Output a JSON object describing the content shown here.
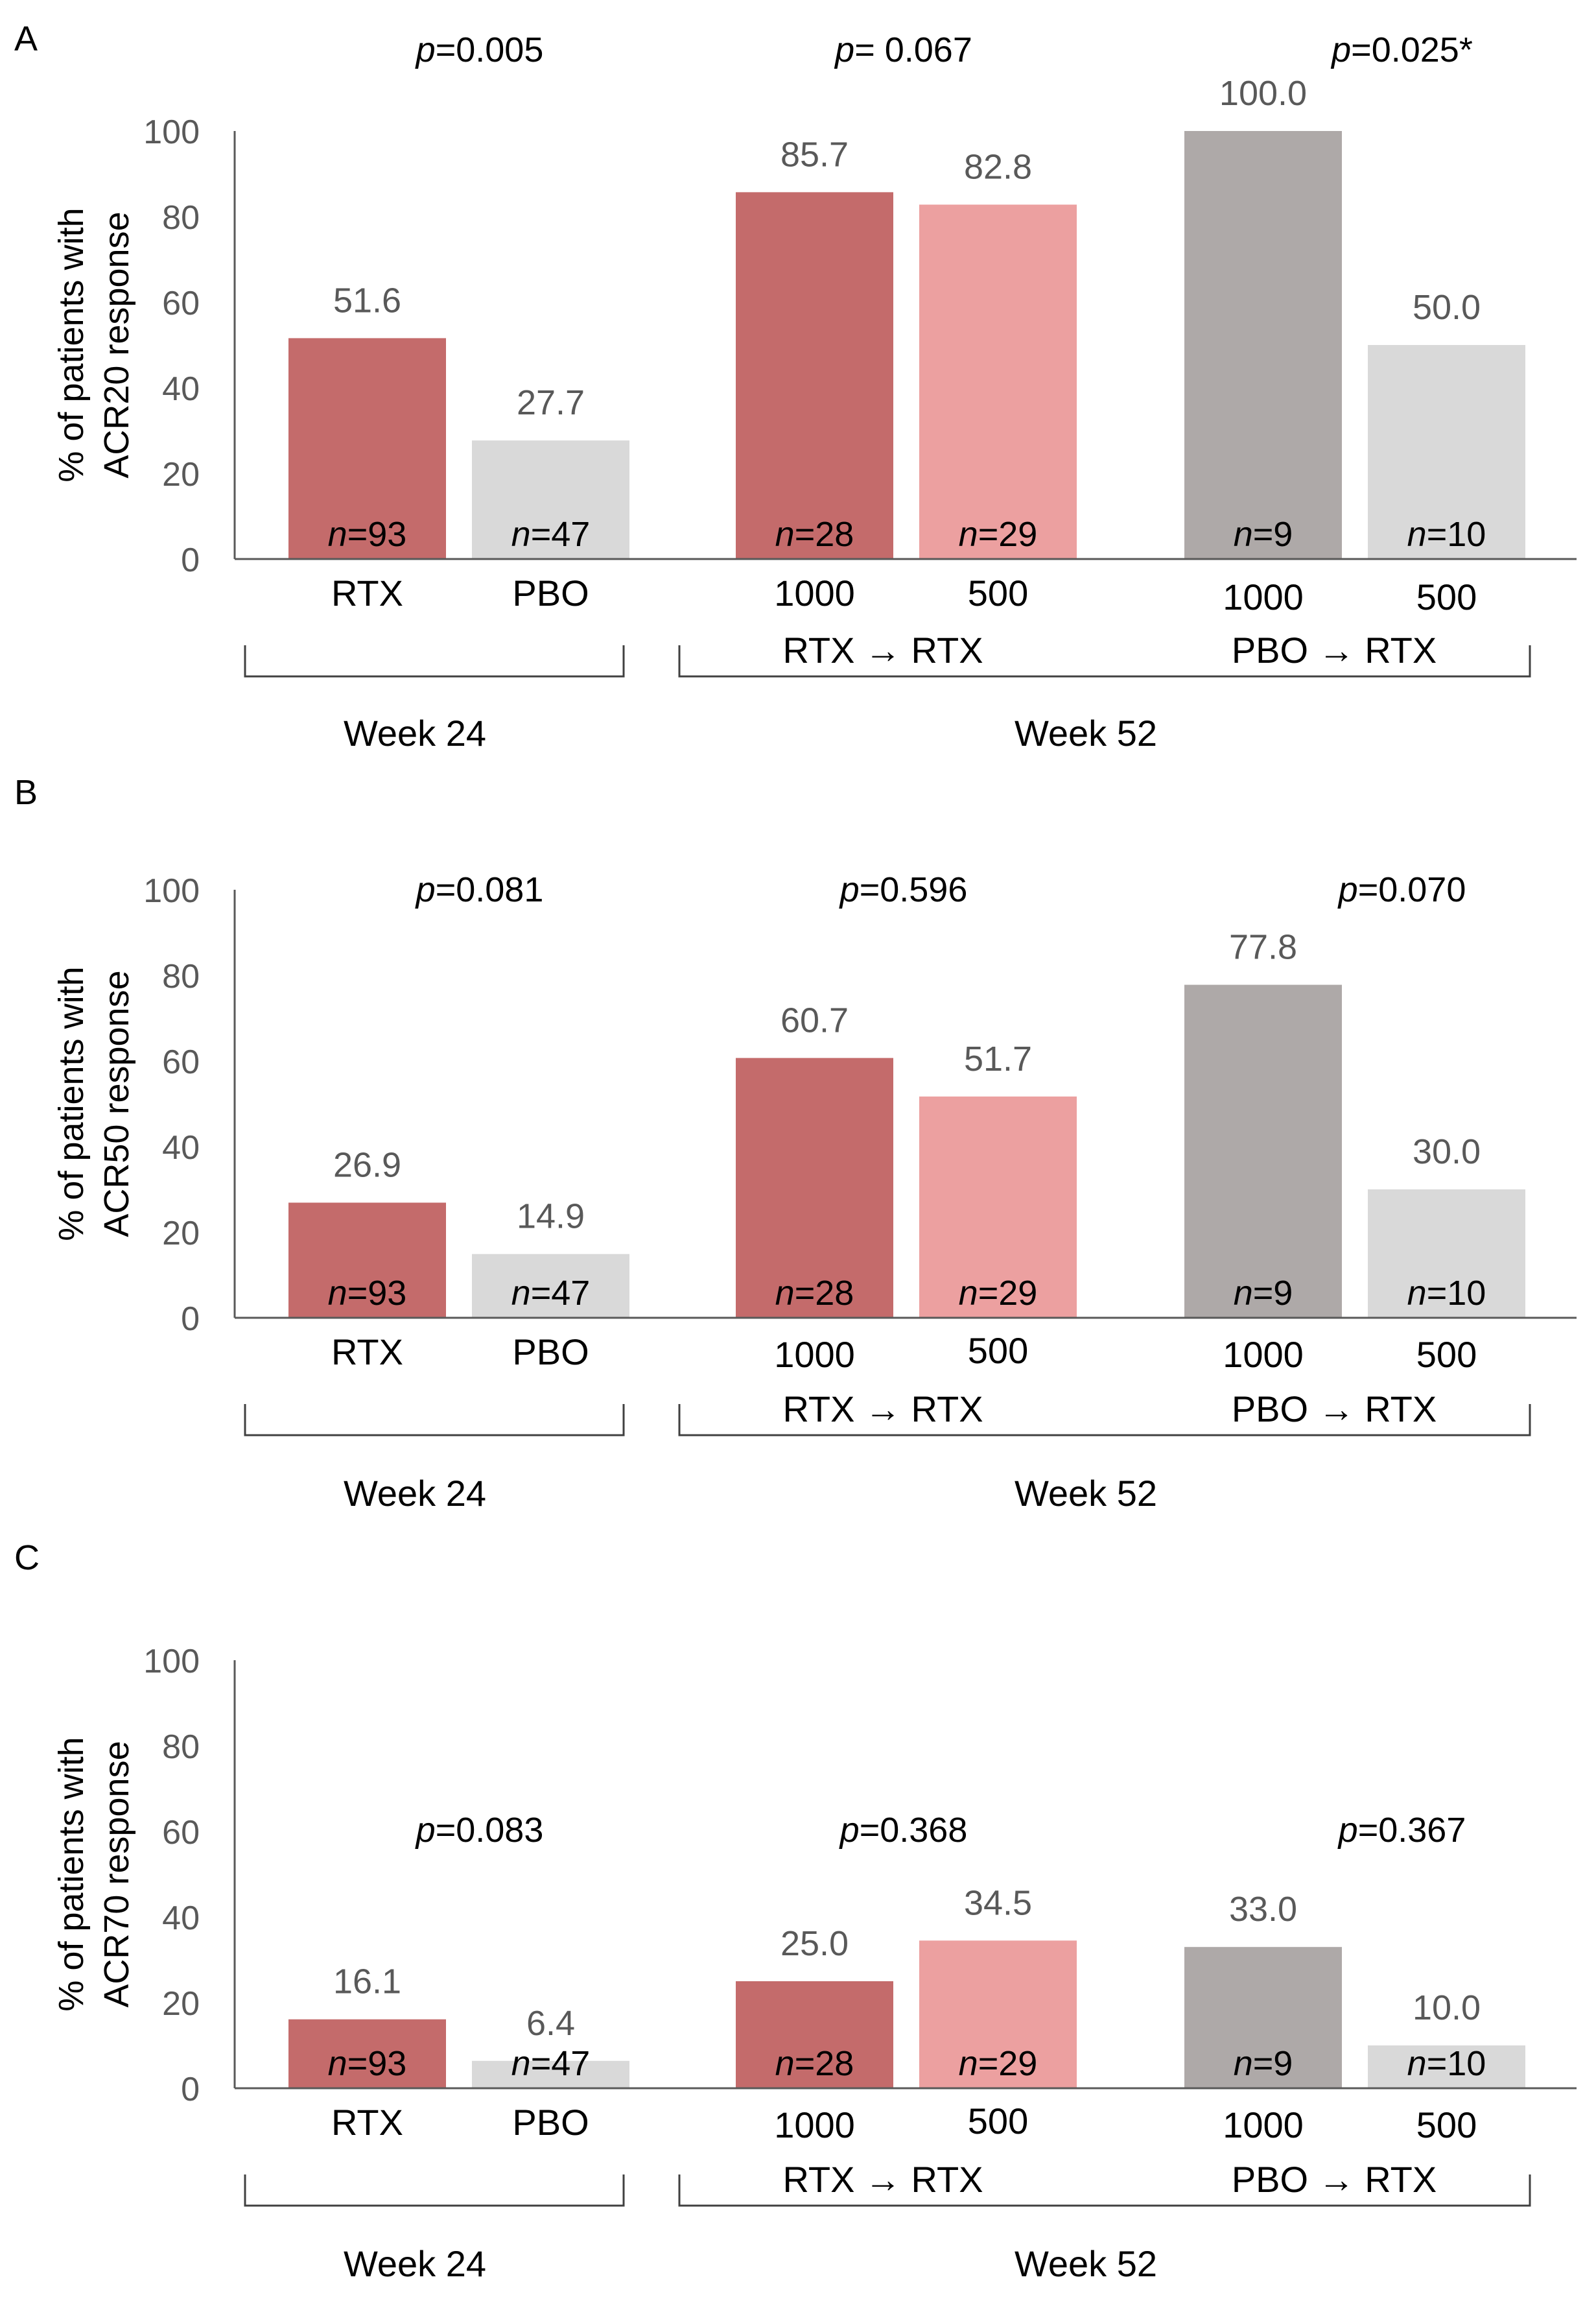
{
  "colors": {
    "rtx_1000": "#c46b6b",
    "rtx_500": "#eca0a0",
    "pbo_rtx_1000": "#aea9a8",
    "light_grey": "#d9d9d9",
    "axis": "#595959",
    "text": "#000000",
    "value_text": "#595959"
  },
  "chart_data": [
    {
      "type": "bar",
      "panel": "A",
      "ylabel": [
        "% of patients with",
        "ACR20 response"
      ],
      "ylim": [
        0,
        100
      ],
      "yticks": [
        0,
        20,
        40,
        60,
        80,
        100
      ],
      "grid": false,
      "p_values": [
        {
          "prefix": "p",
          "value": "=0.005"
        },
        {
          "prefix": "p",
          "value": "= 0.067"
        },
        {
          "prefix": "p",
          "value": "=0.025*"
        }
      ],
      "bars": [
        {
          "label": "RTX",
          "value": 51.6,
          "value_label": "51.6",
          "n_prefix": "n",
          "n_value": "=93",
          "color": "rtx_1000"
        },
        {
          "label": "PBO",
          "value": 27.7,
          "value_label": "27.7",
          "n_prefix": "n",
          "n_value": "=47",
          "color": "light_grey"
        },
        {
          "label": "1000",
          "value": 85.7,
          "value_label": "85.7",
          "n_prefix": "n",
          "n_value": "=28",
          "color": "rtx_1000"
        },
        {
          "label": "500",
          "value": 82.8,
          "value_label": "82.8",
          "n_prefix": "n",
          "n_value": "=29",
          "color": "rtx_500"
        },
        {
          "label": "1000",
          "value": 100.0,
          "value_label": "100.0",
          "n_prefix": "n",
          "n_value": "=9",
          "color": "pbo_rtx_1000"
        },
        {
          "label": "500",
          "value": 50.0,
          "value_label": "50.0",
          "n_prefix": "n",
          "n_value": "=10",
          "color": "light_grey"
        }
      ],
      "group_labels": [
        "RTX → RTX",
        "PBO → RTX"
      ],
      "week_labels": [
        "Week 24",
        "Week 52"
      ]
    },
    {
      "type": "bar",
      "panel": "B",
      "ylabel": [
        "% of patients with",
        "ACR50 response"
      ],
      "ylim": [
        0,
        100
      ],
      "yticks": [
        0,
        20,
        40,
        60,
        80,
        100
      ],
      "grid": false,
      "p_values": [
        {
          "prefix": "p",
          "value": "=0.081"
        },
        {
          "prefix": "p",
          "value": "=0.596"
        },
        {
          "prefix": "p",
          "value": "=0.070"
        }
      ],
      "bars": [
        {
          "label": "RTX",
          "value": 26.9,
          "value_label": "26.9",
          "n_prefix": "n",
          "n_value": "=93",
          "color": "rtx_1000"
        },
        {
          "label": "PBO",
          "value": 14.9,
          "value_label": "14.9",
          "n_prefix": "n",
          "n_value": "=47",
          "color": "light_grey"
        },
        {
          "label": "1000",
          "value": 60.7,
          "value_label": "60.7",
          "n_prefix": "n",
          "n_value": "=28",
          "color": "rtx_1000"
        },
        {
          "label": "500",
          "value": 51.7,
          "value_label": "51.7",
          "n_prefix": "n",
          "n_value": "=29",
          "color": "rtx_500"
        },
        {
          "label": "1000",
          "value": 77.8,
          "value_label": "77.8",
          "n_prefix": "n",
          "n_value": "=9",
          "color": "pbo_rtx_1000"
        },
        {
          "label": "500",
          "value": 30.0,
          "value_label": "30.0",
          "n_prefix": "n",
          "n_value": "=10",
          "color": "light_grey"
        }
      ],
      "group_labels": [
        "RTX → RTX",
        "PBO → RTX"
      ],
      "week_labels": [
        "Week 24",
        "Week 52"
      ]
    },
    {
      "type": "bar",
      "panel": "C",
      "ylabel": [
        "% of patients with",
        "ACR70 response"
      ],
      "ylim": [
        0,
        100
      ],
      "yticks": [
        0,
        20,
        40,
        60,
        80,
        100
      ],
      "grid": false,
      "p_values": [
        {
          "prefix": "p",
          "value": "=0.083"
        },
        {
          "prefix": "p",
          "value": "=0.368"
        },
        {
          "prefix": "p",
          "value": "=0.367"
        }
      ],
      "bars": [
        {
          "label": "RTX",
          "value": 16.1,
          "value_label": "16.1",
          "n_prefix": "n",
          "n_value": "=93",
          "color": "rtx_1000"
        },
        {
          "label": "PBO",
          "value": 6.4,
          "value_label": "6.4",
          "n_prefix": "n",
          "n_value": "=47",
          "color": "light_grey"
        },
        {
          "label": "1000",
          "value": 25.0,
          "value_label": "25.0",
          "n_prefix": "n",
          "n_value": "=28",
          "color": "rtx_1000"
        },
        {
          "label": "500",
          "value": 34.5,
          "value_label": "34.5",
          "n_prefix": "n",
          "n_value": "=29",
          "color": "rtx_500"
        },
        {
          "label": "1000",
          "value": 33.0,
          "value_label": "33.0",
          "n_prefix": "n",
          "n_value": "=9",
          "color": "pbo_rtx_1000"
        },
        {
          "label": "500",
          "value": 10.0,
          "value_label": "10.0",
          "n_prefix": "n",
          "n_value": "=10",
          "color": "light_grey"
        }
      ],
      "group_labels": [
        "RTX → RTX",
        "PBO → RTX"
      ],
      "week_labels": [
        "Week 24",
        "Week 52"
      ]
    }
  ]
}
